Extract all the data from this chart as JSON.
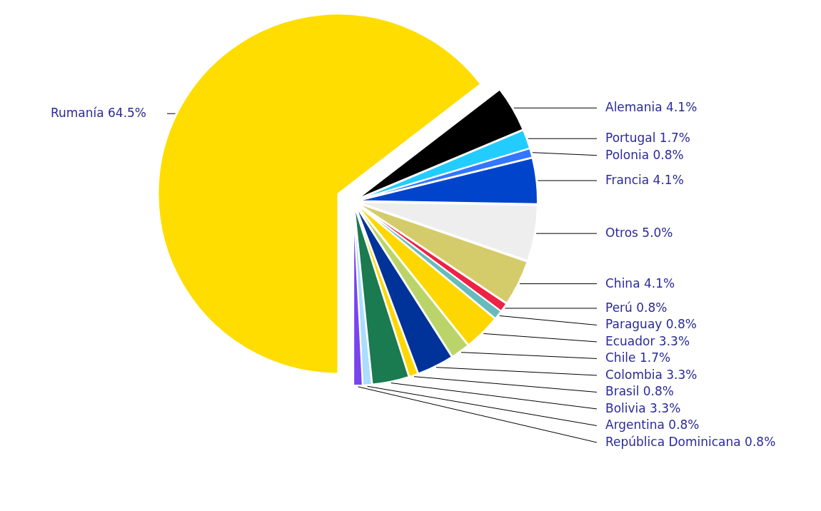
{
  "chart_data": {
    "type": "pie",
    "categories": [
      "Rumanía",
      "Alemania",
      "Portugal",
      "Polonia",
      "Francia",
      "Otros",
      "China",
      "Perú",
      "Paraguay",
      "Ecuador",
      "Chile",
      "Colombia",
      "Brasil",
      "Bolivia",
      "Argentina",
      "República Dominicana"
    ],
    "values": [
      64.5,
      4.1,
      1.7,
      0.8,
      4.1,
      5.0,
      4.1,
      0.8,
      0.8,
      3.3,
      1.7,
      3.3,
      0.8,
      3.3,
      0.8,
      0.8
    ],
    "value_labels": [
      "64.5%",
      "4.1%",
      "1.7%",
      "0.8%",
      "4.1%",
      "5.0%",
      "4.1%",
      "0.8%",
      "0.8%",
      "3.3%",
      "1.7%",
      "3.3%",
      "0.8%",
      "3.3%",
      "0.8%",
      "0.8%"
    ],
    "colors": [
      "#ffdd00",
      "#000000",
      "#22ccff",
      "#3377ff",
      "#0044cc",
      "#eeeeee",
      "#d4cc6a",
      "#ee2244",
      "#66bbbb",
      "#ffd700",
      "#bbd46a",
      "#003399",
      "#ffd700",
      "#1a7a50",
      "#aaddff",
      "#7744ee"
    ]
  }
}
